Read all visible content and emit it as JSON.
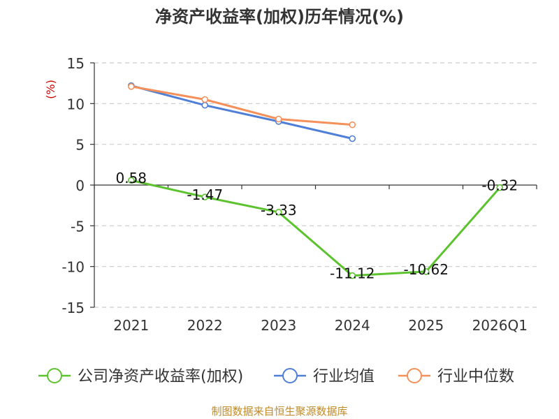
{
  "chart_data": {
    "type": "line",
    "title": "净资产收益率(加权)历年情况(%)",
    "ylabel": "(%)",
    "ylim": [
      -15,
      15
    ],
    "yticks": [
      15,
      10,
      5,
      0,
      -5,
      -10,
      -15
    ],
    "categories": [
      "2021",
      "2022",
      "2023",
      "2024",
      "2025",
      "2026Q1"
    ],
    "series": [
      {
        "name": "公司净资产收益率(加权)",
        "color": "#5cc22e",
        "values": [
          0.58,
          -1.47,
          -3.33,
          -11.12,
          -10.62,
          -0.32
        ],
        "labels": [
          "0.58",
          "-1.47",
          "-3.33",
          "-11.12",
          "-10.62",
          "-0.32"
        ]
      },
      {
        "name": "行业均值",
        "color": "#4f7fd6",
        "values": [
          12.2,
          9.8,
          7.8,
          5.7,
          null,
          null
        ]
      },
      {
        "name": "行业中位数",
        "color": "#f5905a",
        "values": [
          12.1,
          10.5,
          8.1,
          7.4,
          null,
          null
        ]
      }
    ],
    "grid": true,
    "legend": "bottom"
  },
  "footer": {
    "source": "制图数据来自恒生聚源数据库"
  },
  "colors": {
    "title": "#333333",
    "axis_text": "#333333",
    "ylabel": "#cc0000",
    "grid": "#cccccc",
    "footer": "#c08a2a"
  }
}
